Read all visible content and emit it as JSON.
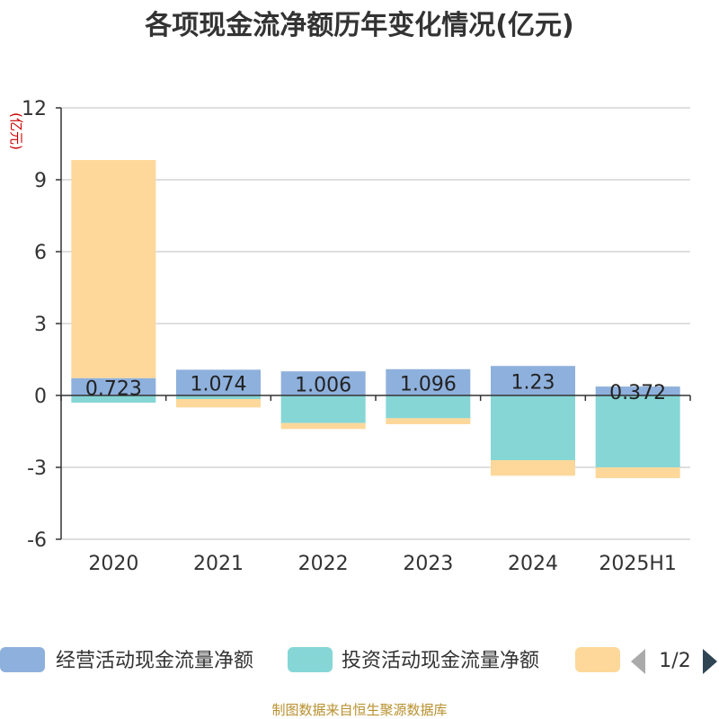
{
  "chart_data": {
    "type": "bar",
    "stacked": true,
    "title": "各项现金流净额历年变化情况(亿元)",
    "ylabel": "(亿元)",
    "categories": [
      "2020",
      "2021",
      "2022",
      "2023",
      "2024",
      "2025H1"
    ],
    "ylim": [
      -6,
      12
    ],
    "yticks": [
      -6,
      -3,
      0,
      3,
      6,
      9,
      12
    ],
    "grid": true,
    "series": [
      {
        "name": "经营活动现金流量净额",
        "color": "#8eb0dc",
        "values": [
          0.723,
          1.074,
          1.006,
          1.096,
          1.23,
          0.372
        ],
        "labels": [
          "0.723",
          "1.074",
          "1.006",
          "1.096",
          "1.23",
          "0.372"
        ]
      },
      {
        "name": "投资活动现金流量净额",
        "color": "#86d6d6",
        "values": [
          -0.3,
          -0.15,
          -1.15,
          -0.95,
          -2.7,
          -3.0
        ]
      },
      {
        "name": "",
        "color": "#fdd89a",
        "values": [
          9.1,
          -0.35,
          -0.25,
          -0.25,
          -0.65,
          -0.45
        ]
      }
    ],
    "legend": {
      "position": "bottom",
      "page": "1/2"
    }
  },
  "footer": "制图数据来自恒生聚源数据库"
}
